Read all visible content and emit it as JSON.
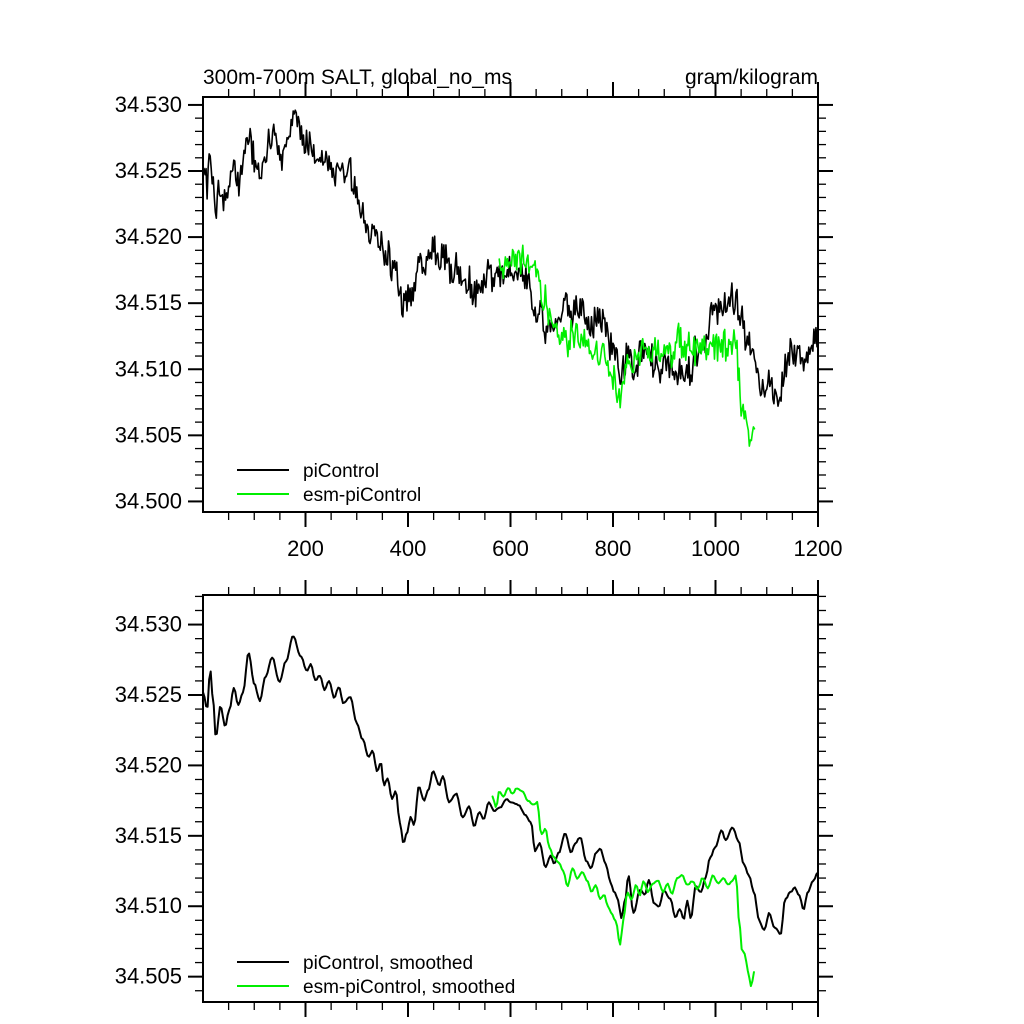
{
  "figure": {
    "background": "#ffffff"
  },
  "trends": {
    "piControl": {
      "x": [
        0,
        8,
        14,
        20,
        25,
        34,
        43,
        52,
        60,
        69,
        78,
        89,
        100,
        111,
        122,
        135,
        149,
        162,
        176,
        190,
        203,
        210,
        220,
        228,
        237,
        246,
        256,
        265,
        274,
        287,
        300,
        312,
        323,
        331,
        340,
        347,
        353,
        360,
        369,
        376,
        384,
        391,
        398,
        405,
        412,
        421,
        431,
        440,
        449,
        461,
        468,
        480,
        494,
        507,
        519,
        529,
        539,
        548,
        557,
        568,
        580,
        592,
        600,
        616,
        628,
        640,
        648,
        657,
        668,
        678,
        685,
        694,
        707,
        718,
        727,
        736,
        748,
        757,
        767,
        775,
        786,
        795,
        803,
        810,
        816,
        824,
        830,
        840,
        853,
        862,
        870,
        880,
        890,
        899,
        912,
        922,
        930,
        938,
        945,
        952,
        961,
        972,
        980,
        990,
        1000,
        1012,
        1020,
        1033,
        1045,
        1055,
        1065,
        1075,
        1085,
        1095,
        1105,
        1115,
        1127,
        1136,
        1146,
        1155,
        1163,
        1172,
        1180,
        1190,
        1200
      ],
      "y": [
        34.5252,
        34.524,
        34.5268,
        34.5245,
        34.522,
        34.5242,
        34.5228,
        34.524,
        34.5255,
        34.5243,
        34.5252,
        34.528,
        34.5258,
        34.5246,
        34.5263,
        34.5277,
        34.5259,
        34.5274,
        34.5292,
        34.5278,
        34.5267,
        34.5272,
        34.526,
        34.5264,
        34.5254,
        34.526,
        34.5248,
        34.5256,
        34.5244,
        34.5249,
        34.523,
        34.5218,
        34.5206,
        34.521,
        34.5196,
        34.5202,
        34.5186,
        34.5191,
        34.5176,
        34.5182,
        34.516,
        34.5145,
        34.5152,
        34.5163,
        34.5158,
        34.5185,
        34.5175,
        34.5183,
        34.5196,
        34.5186,
        34.5192,
        34.5174,
        34.518,
        34.5163,
        34.5171,
        34.5157,
        34.5167,
        34.5162,
        34.5174,
        34.5168,
        34.517,
        34.5176,
        34.5174,
        34.5172,
        34.5165,
        34.516,
        34.5139,
        34.5145,
        34.5128,
        34.5136,
        34.513,
        34.5138,
        34.5152,
        34.5138,
        34.5145,
        34.5149,
        34.5132,
        34.5127,
        34.5138,
        34.5141,
        34.513,
        34.5117,
        34.511,
        34.5104,
        34.5092,
        34.5105,
        34.5122,
        34.5095,
        34.5112,
        34.5108,
        34.5119,
        34.5102,
        34.51,
        34.5111,
        34.5105,
        34.5092,
        34.5098,
        34.5091,
        34.5104,
        34.5091,
        34.5114,
        34.511,
        34.512,
        34.5135,
        34.5142,
        34.5154,
        34.5147,
        34.5156,
        34.5146,
        34.513,
        34.5122,
        34.511,
        34.509,
        34.5083,
        34.5095,
        34.5085,
        34.508,
        34.5105,
        34.511,
        34.5113,
        34.5108,
        34.5098,
        34.511,
        34.5118,
        34.5124
      ]
    },
    "esmPiControl": {
      "x": [
        565,
        572,
        578,
        586,
        596,
        604,
        612,
        623,
        634,
        645,
        652,
        660,
        668,
        676,
        684,
        694,
        703,
        711,
        721,
        730,
        740,
        750,
        758,
        766,
        775,
        783,
        790,
        797,
        805,
        814,
        820,
        828,
        836,
        845,
        852,
        860,
        868,
        878,
        888,
        898,
        906,
        915,
        925,
        935,
        945,
        955,
        965,
        975,
        985,
        995,
        1005,
        1015,
        1025,
        1033,
        1040,
        1046,
        1052,
        1058,
        1062,
        1070,
        1074,
        1077
      ],
      "y": [
        34.5178,
        34.517,
        34.5182,
        34.5178,
        34.5184,
        34.518,
        34.5184,
        34.5182,
        34.5175,
        34.5172,
        34.5174,
        34.5151,
        34.5155,
        34.5142,
        34.5135,
        34.5131,
        34.5125,
        34.5114,
        34.5127,
        34.512,
        34.5124,
        34.5118,
        34.511,
        34.5115,
        34.5105,
        34.5108,
        34.51,
        34.5095,
        34.509,
        34.5073,
        34.509,
        34.511,
        34.5105,
        34.5115,
        34.5108,
        34.5118,
        34.511,
        34.5116,
        34.5118,
        34.511,
        34.5116,
        34.5109,
        34.512,
        34.5122,
        34.5115,
        34.5118,
        34.5112,
        34.512,
        34.5113,
        34.5122,
        34.5116,
        34.512,
        34.5115,
        34.5118,
        34.5122,
        34.509,
        34.5068,
        34.5066,
        34.5055,
        34.5043,
        34.505,
        34.5062
      ]
    }
  },
  "chart_data": [
    {
      "type": "line",
      "title": "300m-700m SALT, global_no_ms",
      "units_label": "gram/kilogram",
      "x_axis": {
        "range": [
          0,
          1200
        ],
        "major_ticks": [
          200,
          400,
          600,
          800,
          1000,
          1200
        ],
        "tick_labels": [
          "200",
          "400",
          "600",
          "800",
          "1000",
          "1200"
        ],
        "minor_step": 50,
        "labels_visible": true
      },
      "y_axis": {
        "range_edges": [
          34.4992,
          34.5306
        ],
        "major_ticks": [
          34.5,
          34.505,
          34.51,
          34.515,
          34.52,
          34.525,
          34.53
        ],
        "tick_labels": [
          "34.500",
          "34.505",
          "34.510",
          "34.515",
          "34.520",
          "34.525",
          "34.530"
        ],
        "minor_step": 0.001
      },
      "legend": [
        {
          "label": "piControl",
          "color": "#000000"
        },
        {
          "label": "esm-piControl",
          "color": "#00ee00"
        }
      ],
      "series": [
        {
          "name": "piControl",
          "color": "#000000",
          "style": "noisy",
          "trend": "piControl",
          "noise_amp": 0.0016,
          "seed": 101,
          "step": 2
        },
        {
          "name": "esm-piControl",
          "color": "#00ee00",
          "style": "noisy",
          "trend": "esmPiControl",
          "noise_amp": 0.0015,
          "seed": 202,
          "step": 2,
          "x_start": 578
        }
      ]
    },
    {
      "type": "line",
      "title": "",
      "units_label": "",
      "x_axis": {
        "range": [
          0,
          1200
        ],
        "major_ticks": [
          200,
          400,
          600,
          800,
          1000,
          1200
        ],
        "tick_labels": [],
        "minor_step": 50,
        "labels_visible": false
      },
      "y_axis": {
        "range_edges": [
          34.5032,
          34.5321
        ],
        "major_ticks": [
          34.505,
          34.51,
          34.515,
          34.52,
          34.525,
          34.53
        ],
        "tick_labels": [
          "34.505",
          "34.510",
          "34.515",
          "34.520",
          "34.525",
          "34.530"
        ],
        "minor_step": 0.001
      },
      "legend": [
        {
          "label": "piControl, smoothed",
          "color": "#000000"
        },
        {
          "label": "esm-piControl, smoothed",
          "color": "#00ee00"
        }
      ],
      "series": [
        {
          "name": "piControl, smoothed",
          "color": "#000000",
          "style": "smooth",
          "trend": "piControl",
          "noise_amp": 6e-05,
          "seed": 11,
          "step": 3
        },
        {
          "name": "esm-piControl, smoothed",
          "color": "#00ee00",
          "style": "smooth",
          "trend": "esmPiControl",
          "noise_amp": 6e-05,
          "seed": 22,
          "step": 3
        }
      ]
    }
  ]
}
